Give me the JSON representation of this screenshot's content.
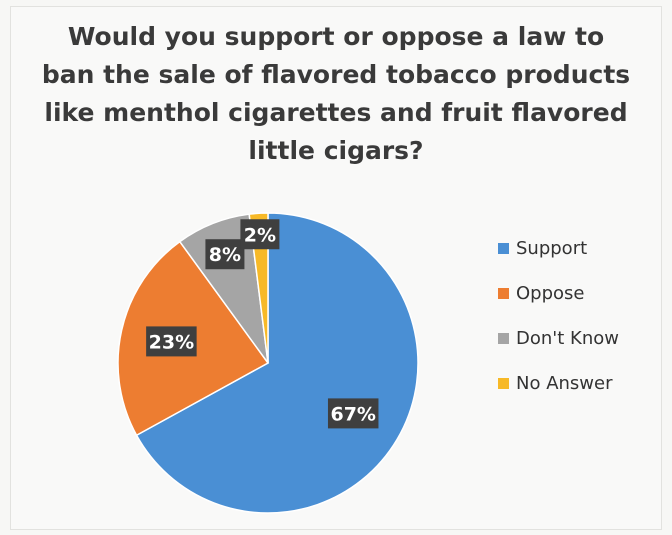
{
  "chart_data": {
    "type": "pie",
    "title": "Would you support or oppose a law to ban the sale of flavored tobacco products like menthol cigarettes and fruit flavored little cigars?",
    "categories": [
      "Support",
      "Oppose",
      "Don't Know",
      "No Answer"
    ],
    "values": [
      67,
      23,
      8,
      2
    ],
    "data_labels": [
      "67%",
      "23%",
      "8%",
      "2%"
    ],
    "colors": [
      "#4a8fd4",
      "#ed7d31",
      "#a5a5a5",
      "#f7b927"
    ],
    "legend_position": "right",
    "label_style": "dark boxes with white text"
  }
}
